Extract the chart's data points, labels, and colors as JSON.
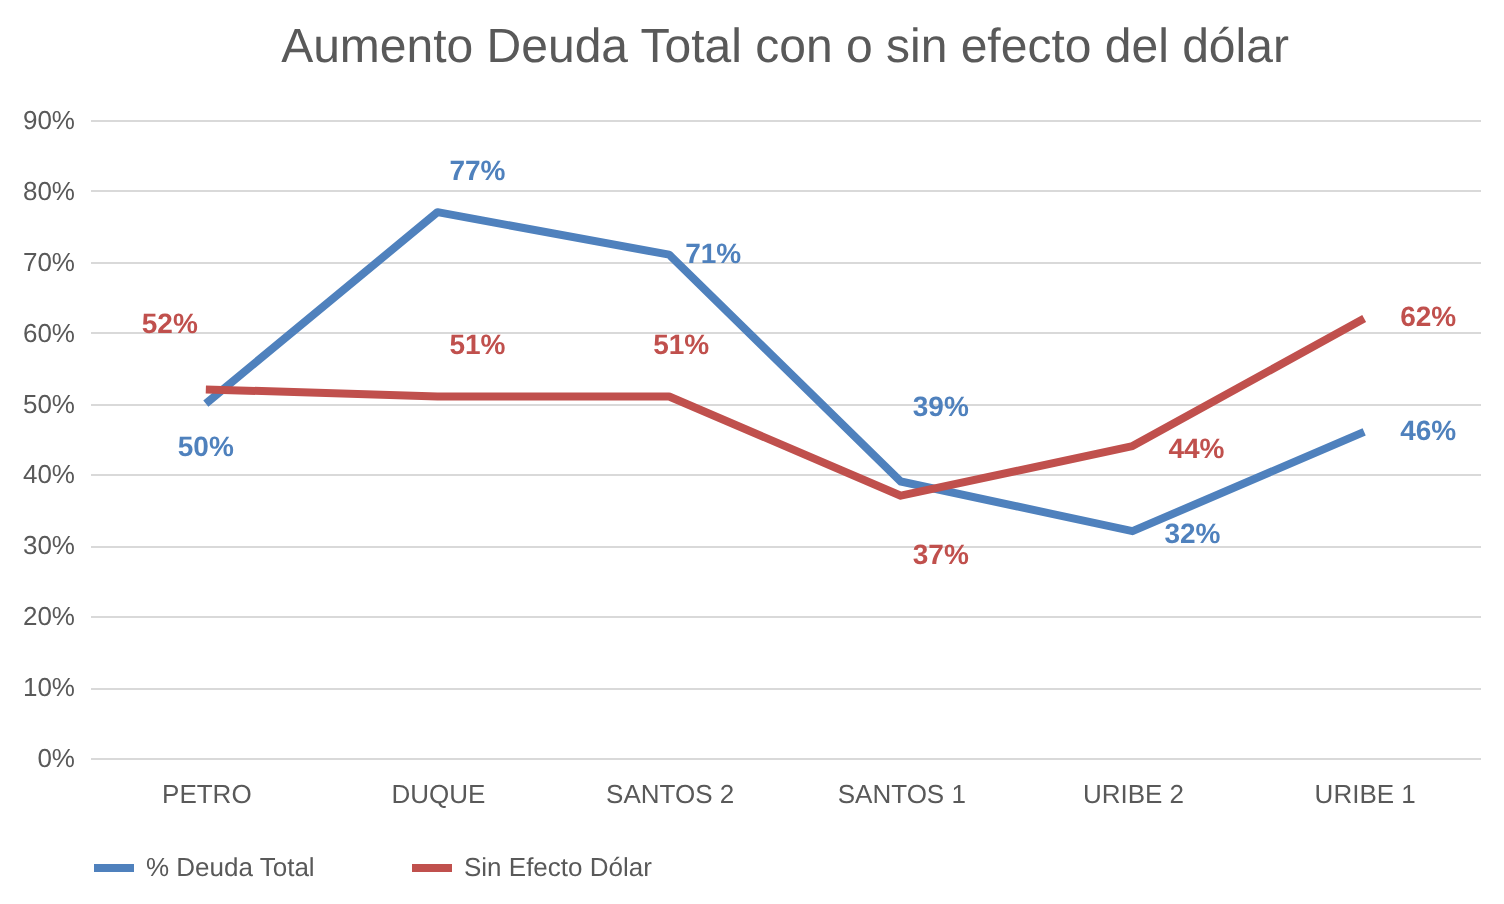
{
  "chart_data": {
    "type": "line",
    "title": "Aumento Deuda Total con o sin efecto del dólar",
    "categories": [
      "PETRO",
      "DUQUE",
      "SANTOS 2",
      "SANTOS 1",
      "URIBE 2",
      "URIBE 1"
    ],
    "series": [
      {
        "name": "% Deuda Total",
        "color": "#4f81bd",
        "values": [
          50,
          77,
          71,
          39,
          32,
          46
        ],
        "value_labels": [
          "50%",
          "77%",
          "71%",
          "39%",
          "32%",
          "46%"
        ]
      },
      {
        "name": "Sin Efecto Dólar",
        "color": "#c0504d",
        "values": [
          52,
          51,
          51,
          37,
          44,
          62
        ],
        "value_labels": [
          "52%",
          "51%",
          "51%",
          "37%",
          "44%",
          "62%"
        ]
      }
    ],
    "ylim": [
      0,
      90
    ],
    "yticks": [
      {
        "value": 0,
        "label": "0%"
      },
      {
        "value": 10,
        "label": "10%"
      },
      {
        "value": 20,
        "label": "20%"
      },
      {
        "value": 30,
        "label": "30%"
      },
      {
        "value": 40,
        "label": "40%"
      },
      {
        "value": 50,
        "label": "50%"
      },
      {
        "value": 60,
        "label": "60%"
      },
      {
        "value": 70,
        "label": "70%"
      },
      {
        "value": 80,
        "label": "80%"
      },
      {
        "value": 90,
        "label": "90%"
      }
    ],
    "grid": "y",
    "legend": "bottom",
    "marker": "none",
    "line_style": "solid"
  }
}
